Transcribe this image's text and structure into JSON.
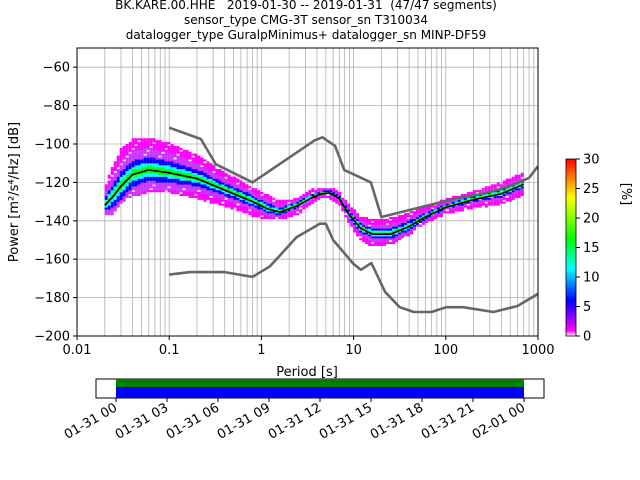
{
  "header": {
    "line1": "BK.KARE.00.HHE   2019-01-30 -- 2019-01-31  (47/47 segments)",
    "line2": "sensor_type CMG-3T sensor_sn T310034",
    "line3": "datalogger_type GuralpMinimus+ datalogger_sn MINP-DF59"
  },
  "chart_data": [
    {
      "type": "heatmap",
      "title": "BK.KARE.00.HHE   2019-01-30 -- 2019-01-31  (47/47 segments)",
      "xlabel": "Period [s]",
      "ylabel": "Power [m²/s⁴/Hz] [dB]",
      "x_scale": "log",
      "xlim": [
        0.01,
        1000
      ],
      "ylim": [
        -200,
        -50
      ],
      "x_ticks": [
        "0.01",
        "0.1",
        "1",
        "10",
        "100",
        "1000"
      ],
      "y_ticks": [
        "-200",
        "-180",
        "-160",
        "-140",
        "-120",
        "-100",
        "-80",
        "-60"
      ],
      "grid": true,
      "colorbar": {
        "label": "[%]",
        "ticks": [
          "0",
          "5",
          "10",
          "15",
          "20",
          "25",
          "30"
        ],
        "range": [
          0,
          30
        ],
        "colors": [
          "#ffffff",
          "#ff00ff",
          "#0000ff",
          "#00ffff",
          "#00ff00",
          "#ffff00",
          "#ff0000"
        ]
      },
      "series": [
        {
          "name": "",
          "color": "#666666",
          "x": [
            0.1,
            0.22,
            0.32,
            0.8,
            3.8,
            4.6,
            6.3,
            7.9,
            15.4,
            20,
            125,
            250,
            400,
            600,
            800,
            1000
          ],
          "y": [
            -91.5,
            -97.4,
            -110.5,
            -120.0,
            -98.0,
            -96.5,
            -101.0,
            -113.5,
            -120.0,
            -138.0,
            -128.5,
            -126.0,
            -123.4,
            -120.3,
            -117.6,
            -111.5
          ]
        },
        {
          "name": "",
          "color": "#666666",
          "x": [
            0.1,
            0.17,
            0.4,
            0.8,
            1.24,
            2.4,
            4.3,
            5.0,
            6.0,
            10.0,
            12.0,
            15.6,
            21.9,
            31.6,
            45.0,
            70.0,
            101,
            154,
            328,
            600,
            1000
          ],
          "y": [
            -168.0,
            -166.7,
            -166.7,
            -169.2,
            -163.7,
            -148.6,
            -141.5,
            -141.5,
            -150.0,
            -162.5,
            -165.5,
            -162.0,
            -177.0,
            -185.0,
            -187.5,
            -187.5,
            -185.0,
            -185.0,
            -187.5,
            -184.4,
            -178.0
          ]
        },
        {
          "name": "",
          "color": "#000000",
          "x": [
            0.02,
            0.025,
            0.03,
            0.04,
            0.06,
            0.1,
            0.2,
            0.4,
            0.8,
            1.2,
            1.6,
            2.5,
            3.5,
            4.5,
            5.5,
            7.0,
            9.0,
            12.0,
            16.0,
            25.0,
            40.0,
            60.0,
            100,
            200,
            400,
            700
          ],
          "y": [
            -132.0,
            -127.0,
            -122.0,
            -116.0,
            -113.5,
            -115.0,
            -118.0,
            -124.0,
            -130.0,
            -134.0,
            -135.5,
            -132.0,
            -128.0,
            -126.0,
            -125.5,
            -128.5,
            -137.0,
            -144.0,
            -147.0,
            -147.0,
            -143.0,
            -138.0,
            -133.0,
            -129.0,
            -126.0,
            -121.0
          ]
        }
      ],
      "heatmap_band": {
        "x": [
          0.02,
          0.025,
          0.03,
          0.04,
          0.06,
          0.1,
          0.2,
          0.4,
          0.8,
          1.2,
          1.6,
          2.5,
          3.5,
          4.5,
          5.5,
          7.0,
          9.0,
          12.0,
          16.0,
          25.0,
          40.0,
          60.0,
          100,
          200,
          400,
          700
        ],
        "upper": [
          -124.0,
          -112.0,
          -104.0,
          -99.0,
          -98.0,
          -101.0,
          -107.0,
          -116.0,
          -124.0,
          -128.0,
          -131.0,
          -129.0,
          -125.0,
          -124.0,
          -124.0,
          -126.0,
          -133.0,
          -139.0,
          -141.0,
          -140.0,
          -137.0,
          -134.0,
          -130.0,
          -126.0,
          -121.0,
          -116.0
        ],
        "lower": [
          -137.0,
          -136.0,
          -131.0,
          -127.0,
          -125.0,
          -125.0,
          -128.0,
          -132.0,
          -137.0,
          -139.0,
          -139.0,
          -136.0,
          -131.0,
          -128.0,
          -128.0,
          -131.0,
          -141.0,
          -150.0,
          -153.0,
          -152.0,
          -147.0,
          -141.0,
          -136.0,
          -133.0,
          -131.0,
          -126.0
        ]
      }
    },
    {
      "type": "bar",
      "x_ticks": [
        "01-31 00",
        "01-31 03",
        "01-31 06",
        "01-31 09",
        "01-31 12",
        "01-31 15",
        "01-31 18",
        "01-31 21",
        "02-01 00"
      ],
      "coverage": [
        {
          "start_hour": 0,
          "end_hour": 24,
          "color": "#008000"
        },
        {
          "start_hour": 0,
          "end_hour": 24,
          "color": "#0000ff"
        }
      ]
    }
  ]
}
